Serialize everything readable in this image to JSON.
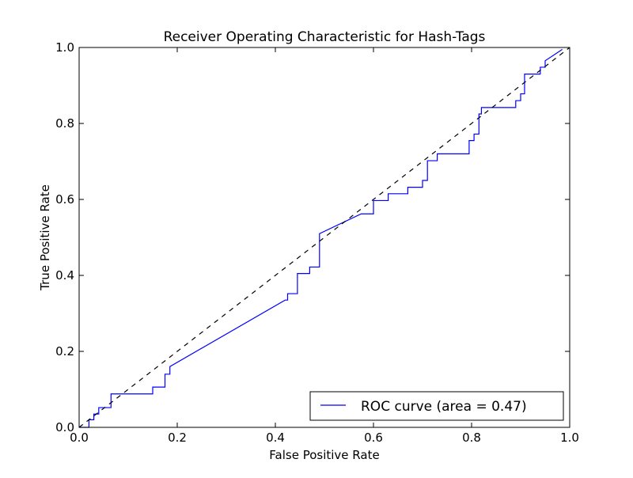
{
  "chart_data": {
    "type": "line",
    "title": "Receiver Operating Characteristic for Hash-Tags",
    "xlabel": "False Positive Rate",
    "ylabel": "True Positive Rate",
    "xlim": [
      0.0,
      1.0
    ],
    "ylim": [
      0.0,
      1.0
    ],
    "xticks": [
      "0.0",
      "0.2",
      "0.4",
      "0.6",
      "0.8",
      "1.0"
    ],
    "yticks": [
      "0.0",
      "0.2",
      "0.4",
      "0.6",
      "0.8",
      "1.0"
    ],
    "grid": false,
    "legend_position": "lower-right",
    "series": [
      {
        "name": "ROC curve (area = 0.47)",
        "color": "#0000ff",
        "style": "solid",
        "x": [
          0.0,
          0.02,
          0.02,
          0.03,
          0.03,
          0.04,
          0.04,
          0.065,
          0.065,
          0.15,
          0.15,
          0.175,
          0.175,
          0.185,
          0.185,
          0.42,
          0.425,
          0.425,
          0.445,
          0.445,
          0.47,
          0.47,
          0.49,
          0.49,
          0.575,
          0.6,
          0.6,
          0.63,
          0.63,
          0.67,
          0.67,
          0.7,
          0.7,
          0.71,
          0.71,
          0.73,
          0.73,
          0.795,
          0.795,
          0.805,
          0.805,
          0.815,
          0.815,
          0.82,
          0.82,
          0.89,
          0.89,
          0.9,
          0.9,
          0.908,
          0.908,
          0.94,
          0.94,
          0.95,
          0.95,
          0.985
        ],
        "y": [
          0.0,
          0.0,
          0.02,
          0.02,
          0.035,
          0.035,
          0.052,
          0.052,
          0.088,
          0.088,
          0.106,
          0.106,
          0.14,
          0.14,
          0.16,
          0.335,
          0.335,
          0.352,
          0.352,
          0.405,
          0.405,
          0.422,
          0.422,
          0.51,
          0.562,
          0.562,
          0.597,
          0.597,
          0.615,
          0.615,
          0.632,
          0.632,
          0.65,
          0.65,
          0.702,
          0.702,
          0.72,
          0.72,
          0.755,
          0.755,
          0.772,
          0.772,
          0.825,
          0.825,
          0.842,
          0.842,
          0.86,
          0.86,
          0.878,
          0.878,
          0.93,
          0.93,
          0.948,
          0.948,
          0.965,
          0.995
        ]
      },
      {
        "color": "#000000",
        "style": "dashed",
        "x": [
          0.0,
          1.0
        ],
        "y": [
          0.0,
          1.0
        ]
      }
    ]
  }
}
